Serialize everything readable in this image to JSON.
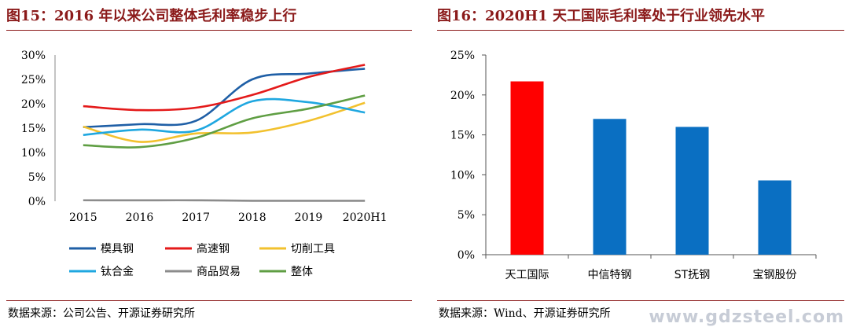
{
  "left": {
    "title": "图15：2016 年以来公司整体毛利率稳步上行",
    "source": "数据来源：公司公告、开源证券研究所"
  },
  "right": {
    "title": "图16：2020H1 天工国际毛利率处于行业领先水平",
    "source": "数据来源：Wind、开源证券研究所"
  },
  "watermark": "www.gdzsteel.com",
  "chart_data": [
    {
      "type": "line",
      "title": "",
      "x": [
        "2015",
        "2016",
        "2017",
        "2018",
        "2019",
        "2020H1"
      ],
      "ylim": [
        0,
        30
      ],
      "y_ticks": [
        "0%",
        "5%",
        "10%",
        "15%",
        "20%",
        "25%",
        "30%"
      ],
      "y_tick_values": [
        0,
        5,
        10,
        15,
        20,
        25,
        30
      ],
      "grid": false,
      "legend_position": "bottom",
      "series": [
        {
          "name": "模具钢",
          "color": "#1f5fa6",
          "values": [
            15.2,
            15.8,
            16.5,
            25.0,
            26.2,
            27.2
          ]
        },
        {
          "name": "高速钢",
          "color": "#e41a1a",
          "values": [
            19.5,
            18.7,
            19.2,
            21.8,
            25.5,
            28.0
          ]
        },
        {
          "name": "切削工具",
          "color": "#f2c12e",
          "values": [
            15.3,
            12.2,
            13.9,
            14.1,
            16.5,
            20.2
          ]
        },
        {
          "name": "钛合金",
          "color": "#1fa7e0",
          "values": [
            13.6,
            14.7,
            14.5,
            20.5,
            20.3,
            18.2
          ]
        },
        {
          "name": "商品贸易",
          "color": "#8c8c8c",
          "values": [
            0.2,
            0.2,
            0.2,
            0.1,
            0.1,
            0.1
          ]
        },
        {
          "name": "整体",
          "color": "#5f9e43",
          "values": [
            11.5,
            11.1,
            13.0,
            17.0,
            19.0,
            21.7
          ]
        }
      ]
    },
    {
      "type": "bar",
      "title": "",
      "categories": [
        "天工国际",
        "中信特钢",
        "ST抚钢",
        "宝钢股份"
      ],
      "values": [
        21.7,
        17.0,
        16.0,
        9.3
      ],
      "colors": [
        "#ff0000",
        "#0a6fc2",
        "#0a6fc2",
        "#0a6fc2"
      ],
      "ylim": [
        0,
        25
      ],
      "y_ticks": [
        "0%",
        "5%",
        "10%",
        "15%",
        "20%",
        "25%"
      ],
      "y_tick_values": [
        0,
        5,
        10,
        15,
        20,
        25
      ],
      "grid": false
    }
  ]
}
